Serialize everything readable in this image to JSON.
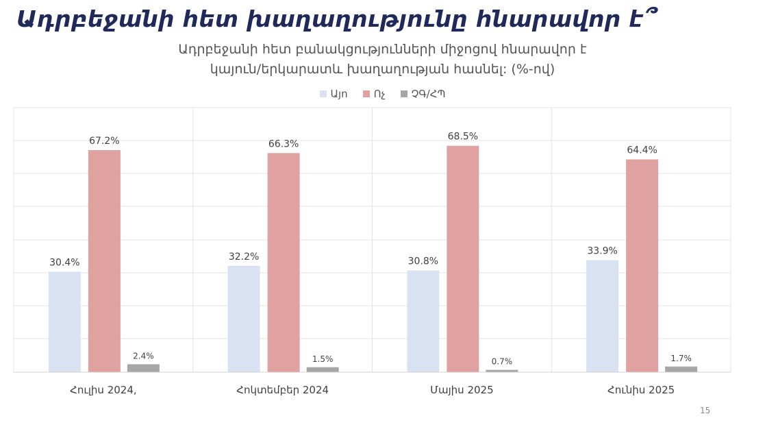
{
  "header": {
    "title": "Ադրբեջանի հետ խաղաղությունը հնարավոր է՞",
    "subtitle_line1": "Ադրբեջանի հետ բանակցությունների միջոցով հնարավոր է",
    "subtitle_line2": "կայուն/երկարատև խաղաղության հասնել: (%-ով)"
  },
  "legend": [
    {
      "label": "Այո",
      "color": "#d9e2f3"
    },
    {
      "label": "Ոչ",
      "color": "#e0a1a1"
    },
    {
      "label": "ՉԳ/ՀՊ",
      "color": "#a6a6a6"
    }
  ],
  "chart_data": {
    "type": "bar",
    "categories": [
      "Հուլիս 2024,",
      "Հոկտեմբեր 2024",
      "Մայիս 2025",
      "Հունիս 2025"
    ],
    "series": [
      {
        "name": "Այո",
        "values": [
          30.4,
          32.2,
          30.8,
          33.9
        ],
        "labels": [
          "30.4%",
          "32.2%",
          "30.8%",
          "33.9%"
        ],
        "color": "#d9e2f3"
      },
      {
        "name": "Ոչ",
        "values": [
          67.2,
          66.3,
          68.5,
          64.4
        ],
        "labels": [
          "67.2%",
          "66.3%",
          "68.5%",
          "64.4%"
        ],
        "color": "#e0a1a1"
      },
      {
        "name": "ՉԳ/ՀՊ",
        "values": [
          2.4,
          1.5,
          0.7,
          1.7
        ],
        "labels": [
          "2.4%",
          "1.5%",
          "0.7%",
          "1.7%"
        ],
        "color": "#a6a6a6"
      }
    ],
    "ylim": [
      0,
      80
    ],
    "grid": true,
    "legend_position": "top"
  },
  "footer": {
    "page_number": "15"
  }
}
